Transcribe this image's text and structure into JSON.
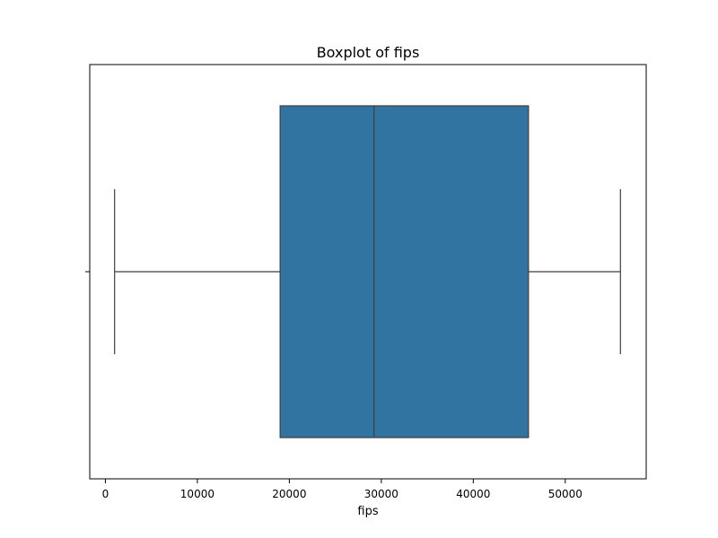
{
  "chart_data": {
    "type": "box",
    "title": "Boxplot of fips",
    "xlabel": "fips",
    "ylabel": "",
    "orientation": "horizontal",
    "xlim": [
      -1700,
      58800
    ],
    "x_ticks": [
      0,
      10000,
      20000,
      30000,
      40000,
      50000
    ],
    "box": {
      "whisker_low": 1001,
      "q1": 19000,
      "median": 29200,
      "q3": 46000,
      "whisker_high": 56000
    },
    "grid": false,
    "legend": "none",
    "colors": {
      "box_fill": "#3274a1",
      "lines": "#3f3f3f",
      "axes": "#000000"
    }
  }
}
